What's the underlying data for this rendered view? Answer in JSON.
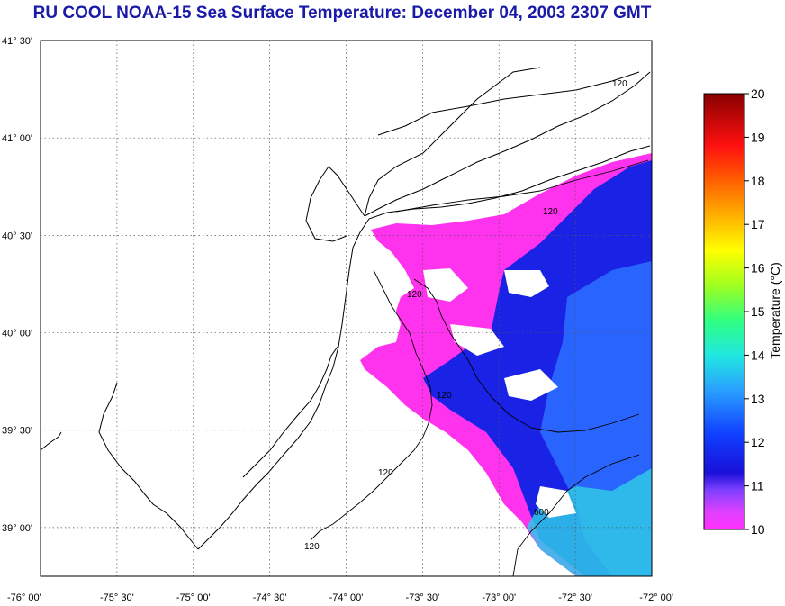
{
  "title": "RU COOL  NOAA-15  Sea Surface Temperature:  December 04, 2003 2307 GMT",
  "map": {
    "lat_labels": [
      "41° 30'",
      "41° 00'",
      "40° 30'",
      "40° 00'",
      "39° 30'",
      "39° 00'"
    ],
    "lon_labels": [
      "-76° 00'",
      "-75° 30'",
      "-75° 00'",
      "-74° 30'",
      "-74° 00'",
      "-73° 30'",
      "-73° 00'",
      "-72° 30'",
      "-72° 00'"
    ],
    "contour_labels": [
      "120",
      "120",
      "120",
      "120",
      "120",
      "120",
      "600"
    ],
    "lat_range": [
      38.75,
      41.5
    ],
    "lon_range": [
      -76.0,
      -72.0
    ],
    "grid": "dotted"
  },
  "colorbar": {
    "label": "Temperature (°C)",
    "ticks": [
      "20",
      "19",
      "18",
      "17",
      "16",
      "15",
      "14",
      "13",
      "12",
      "11",
      "10"
    ],
    "min": 10,
    "max": 20,
    "colors": [
      "#ff40ff",
      "#a040ff",
      "#1010e0",
      "#2a7aff",
      "#20e8e8",
      "#40ff60",
      "#d0ff20",
      "#ffd000",
      "#ff7000",
      "#ff1010",
      "#9a0000"
    ]
  }
}
